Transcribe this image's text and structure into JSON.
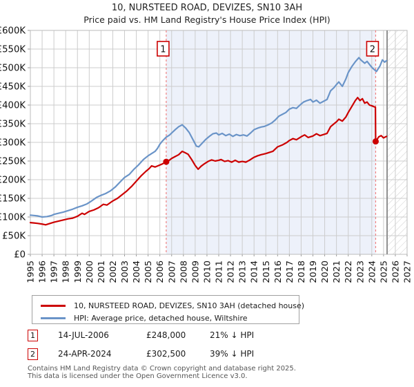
{
  "chart_data": {
    "type": "line",
    "title": "10, NURSTEED ROAD, DEVIZES, SN10 3AH",
    "subtitle": "Price paid vs. HM Land Registry's House Price Index (HPI)",
    "x_range": [
      1995,
      2027
    ],
    "x_tick_labels": [
      "1995",
      "1996",
      "1997",
      "1998",
      "1999",
      "2000",
      "2001",
      "2002",
      "2003",
      "2004",
      "2005",
      "2006",
      "2007",
      "2008",
      "2009",
      "2010",
      "2011",
      "2012",
      "2013",
      "2014",
      "2015",
      "2016",
      "2017",
      "2018",
      "2019",
      "2020",
      "2021",
      "2022",
      "2023",
      "2024",
      "2025",
      "2026",
      "2027"
    ],
    "y_max_k": 600,
    "y_tick_step_k": 50,
    "y_tick_labels": [
      "£0",
      "£50K",
      "£100K",
      "£150K",
      "£200K",
      "£250K",
      "£300K",
      "£350K",
      "£400K",
      "£450K",
      "£500K",
      "£550K",
      "£600K"
    ],
    "unit": "GBP thousands",
    "grid": true,
    "legend_position": "bottom",
    "colors": {
      "price_line": "#cc0000",
      "hpi_line": "#6a94c8",
      "shade": "#edf1fa",
      "grid": "#cccccc",
      "marker_dash": "#f08080",
      "marker_box_border": "#cc0000",
      "now_line": "#8f8f8f",
      "hatch": "#cfcfcf"
    },
    "shaded_region": {
      "from": 2006.54,
      "to": 2024.33
    },
    "future_region": {
      "from": 2025.3,
      "to": 2027
    },
    "sales": [
      {
        "label": "1",
        "x": 2006.54,
        "y_k": 248
      },
      {
        "label": "2",
        "x": 2024.33,
        "y_k": 302.5
      }
    ],
    "series": [
      {
        "name": "HPI: Average price, detached house, Wiltshire",
        "color": "#6a94c8",
        "points": [
          [
            1995.0,
            105
          ],
          [
            1995.3,
            104
          ],
          [
            1995.6,
            103
          ],
          [
            1996.0,
            100
          ],
          [
            1996.4,
            101
          ],
          [
            1996.8,
            104
          ],
          [
            1997.0,
            107
          ],
          [
            1997.4,
            110
          ],
          [
            1997.8,
            113
          ],
          [
            1998.2,
            117
          ],
          [
            1998.6,
            121
          ],
          [
            1999.0,
            126
          ],
          [
            1999.4,
            130
          ],
          [
            1999.8,
            135
          ],
          [
            2000.2,
            143
          ],
          [
            2000.6,
            152
          ],
          [
            2001.0,
            158
          ],
          [
            2001.4,
            163
          ],
          [
            2001.8,
            170
          ],
          [
            2002.2,
            180
          ],
          [
            2002.6,
            193
          ],
          [
            2003.0,
            206
          ],
          [
            2003.4,
            214
          ],
          [
            2003.8,
            228
          ],
          [
            2004.2,
            240
          ],
          [
            2004.6,
            254
          ],
          [
            2005.0,
            264
          ],
          [
            2005.3,
            270
          ],
          [
            2005.6,
            276
          ],
          [
            2005.8,
            284
          ],
          [
            2006.0,
            295
          ],
          [
            2006.2,
            303
          ],
          [
            2006.54,
            314
          ],
          [
            2006.8,
            319
          ],
          [
            2007.0,
            325
          ],
          [
            2007.3,
            334
          ],
          [
            2007.6,
            342
          ],
          [
            2007.9,
            347
          ],
          [
            2008.2,
            338
          ],
          [
            2008.5,
            326
          ],
          [
            2008.8,
            308
          ],
          [
            2009.1,
            290
          ],
          [
            2009.3,
            288
          ],
          [
            2009.6,
            298
          ],
          [
            2009.9,
            308
          ],
          [
            2010.2,
            316
          ],
          [
            2010.5,
            323
          ],
          [
            2010.8,
            325
          ],
          [
            2011.0,
            320
          ],
          [
            2011.3,
            324
          ],
          [
            2011.6,
            318
          ],
          [
            2011.9,
            322
          ],
          [
            2012.2,
            316
          ],
          [
            2012.5,
            321
          ],
          [
            2012.8,
            318
          ],
          [
            2013.1,
            320
          ],
          [
            2013.4,
            317
          ],
          [
            2013.7,
            325
          ],
          [
            2014.0,
            334
          ],
          [
            2014.3,
            338
          ],
          [
            2014.6,
            341
          ],
          [
            2014.9,
            343
          ],
          [
            2015.2,
            347
          ],
          [
            2015.5,
            352
          ],
          [
            2015.8,
            360
          ],
          [
            2016.1,
            370
          ],
          [
            2016.4,
            375
          ],
          [
            2016.7,
            380
          ],
          [
            2017.0,
            389
          ],
          [
            2017.3,
            393
          ],
          [
            2017.6,
            391
          ],
          [
            2017.9,
            400
          ],
          [
            2018.2,
            408
          ],
          [
            2018.5,
            412
          ],
          [
            2018.8,
            415
          ],
          [
            2019.0,
            408
          ],
          [
            2019.3,
            413
          ],
          [
            2019.6,
            405
          ],
          [
            2019.9,
            410
          ],
          [
            2020.2,
            415
          ],
          [
            2020.5,
            438
          ],
          [
            2020.8,
            447
          ],
          [
            2021.0,
            455
          ],
          [
            2021.2,
            462
          ],
          [
            2021.5,
            450
          ],
          [
            2021.8,
            470
          ],
          [
            2022.0,
            487
          ],
          [
            2022.3,
            503
          ],
          [
            2022.6,
            516
          ],
          [
            2022.9,
            527
          ],
          [
            2023.1,
            520
          ],
          [
            2023.4,
            512
          ],
          [
            2023.6,
            517
          ],
          [
            2023.9,
            505
          ],
          [
            2024.1,
            498
          ],
          [
            2024.4,
            490
          ],
          [
            2024.7,
            505
          ],
          [
            2024.9,
            521
          ],
          [
            2025.1,
            515
          ],
          [
            2025.25,
            519
          ]
        ]
      },
      {
        "name": "10, NURSTEED ROAD, DEVIZES, SN10 3AH (detached house)",
        "color": "#cc0000",
        "points": [
          [
            1995.0,
            85
          ],
          [
            1995.3,
            84
          ],
          [
            1995.6,
            83
          ],
          [
            1996.0,
            81
          ],
          [
            1996.3,
            79
          ],
          [
            1996.6,
            82
          ],
          [
            1997.0,
            86
          ],
          [
            1997.4,
            89
          ],
          [
            1997.8,
            92
          ],
          [
            1998.2,
            95
          ],
          [
            1998.6,
            97
          ],
          [
            1999.0,
            102
          ],
          [
            1999.4,
            110
          ],
          [
            1999.6,
            107
          ],
          [
            2000.0,
            115
          ],
          [
            2000.4,
            119
          ],
          [
            2000.8,
            125
          ],
          [
            2001.2,
            134
          ],
          [
            2001.5,
            132
          ],
          [
            2002.0,
            143
          ],
          [
            2002.4,
            150
          ],
          [
            2002.8,
            160
          ],
          [
            2003.2,
            170
          ],
          [
            2003.6,
            182
          ],
          [
            2004.0,
            196
          ],
          [
            2004.4,
            210
          ],
          [
            2004.8,
            222
          ],
          [
            2005.1,
            230
          ],
          [
            2005.3,
            237
          ],
          [
            2005.6,
            234
          ],
          [
            2005.9,
            238
          ],
          [
            2006.2,
            242
          ],
          [
            2006.54,
            248
          ],
          [
            2006.8,
            252
          ],
          [
            2007.0,
            257
          ],
          [
            2007.3,
            262
          ],
          [
            2007.6,
            267
          ],
          [
            2007.9,
            276
          ],
          [
            2008.1,
            273
          ],
          [
            2008.4,
            268
          ],
          [
            2008.7,
            254
          ],
          [
            2009.0,
            238
          ],
          [
            2009.25,
            228
          ],
          [
            2009.5,
            236
          ],
          [
            2009.8,
            243
          ],
          [
            2010.1,
            249
          ],
          [
            2010.4,
            253
          ],
          [
            2010.7,
            250
          ],
          [
            2011.0,
            252
          ],
          [
            2011.2,
            254
          ],
          [
            2011.5,
            249
          ],
          [
            2011.8,
            251
          ],
          [
            2012.1,
            247
          ],
          [
            2012.4,
            252
          ],
          [
            2012.7,
            247
          ],
          [
            2013.0,
            249
          ],
          [
            2013.3,
            247
          ],
          [
            2013.6,
            252
          ],
          [
            2014.0,
            260
          ],
          [
            2014.3,
            264
          ],
          [
            2014.6,
            267
          ],
          [
            2015.0,
            270
          ],
          [
            2015.3,
            273
          ],
          [
            2015.6,
            276
          ],
          [
            2016.0,
            288
          ],
          [
            2016.4,
            293
          ],
          [
            2016.8,
            300
          ],
          [
            2017.0,
            305
          ],
          [
            2017.3,
            310
          ],
          [
            2017.6,
            307
          ],
          [
            2018.0,
            315
          ],
          [
            2018.3,
            320
          ],
          [
            2018.6,
            313
          ],
          [
            2019.0,
            317
          ],
          [
            2019.3,
            323
          ],
          [
            2019.6,
            318
          ],
          [
            2019.9,
            321
          ],
          [
            2020.2,
            324
          ],
          [
            2020.5,
            342
          ],
          [
            2020.8,
            350
          ],
          [
            2021.0,
            355
          ],
          [
            2021.2,
            362
          ],
          [
            2021.5,
            357
          ],
          [
            2021.8,
            368
          ],
          [
            2022.0,
            380
          ],
          [
            2022.3,
            396
          ],
          [
            2022.6,
            412
          ],
          [
            2022.8,
            420
          ],
          [
            2023.0,
            412
          ],
          [
            2023.2,
            417
          ],
          [
            2023.4,
            405
          ],
          [
            2023.6,
            408
          ],
          [
            2023.8,
            400
          ],
          [
            2024.0,
            398
          ],
          [
            2024.31,
            394
          ],
          [
            2024.33,
            302.5
          ],
          [
            2024.6,
            315
          ],
          [
            2024.8,
            318
          ],
          [
            2025.0,
            312
          ],
          [
            2025.25,
            316
          ]
        ]
      }
    ]
  },
  "legend": {
    "items": [
      {
        "label": "10, NURSTEED ROAD, DEVIZES, SN10 3AH (detached house)",
        "color": "#cc0000"
      },
      {
        "label": "HPI: Average price, detached house, Wiltshire",
        "color": "#6a94c8"
      }
    ]
  },
  "annotations": [
    {
      "num": "1",
      "date": "14-JUL-2006",
      "price": "£248,000",
      "hpi": "21% ↓ HPI"
    },
    {
      "num": "2",
      "date": "24-APR-2024",
      "price": "£302,500",
      "hpi": "39% ↓ HPI"
    }
  ],
  "footer": {
    "line1": "Contains HM Land Registry data © Crown copyright and database right 2025.",
    "line2": "This data is licensed under the Open Government Licence v3.0."
  }
}
